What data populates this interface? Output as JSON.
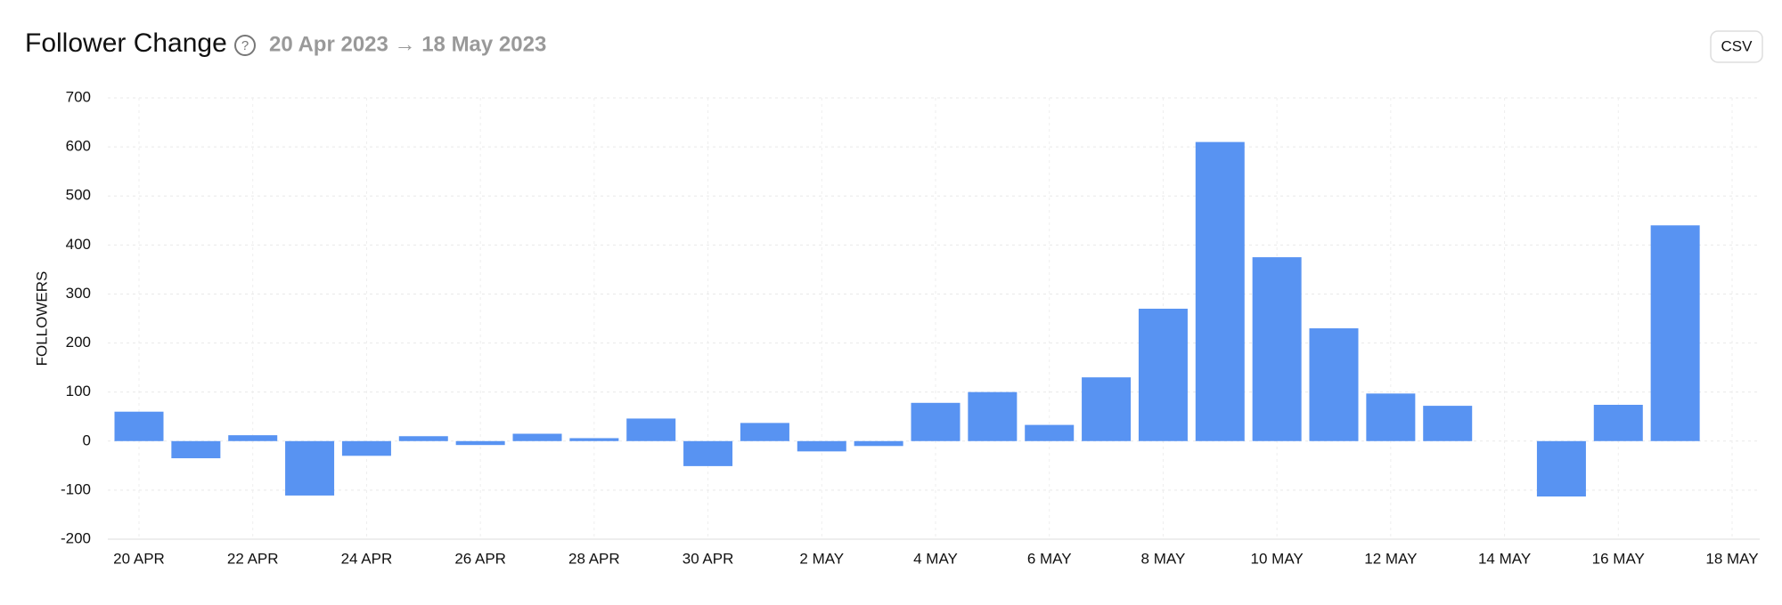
{
  "header": {
    "title": "Follower Change",
    "date_range": "20 Apr 2023 → 18 May 2023",
    "button": "CSV"
  },
  "chart_data": {
    "type": "bar",
    "y_label": "FOLLOWERS",
    "color": "#5893f2",
    "grid": true,
    "categories": [
      "20 APR",
      null,
      "22 APR",
      null,
      "24 APR",
      null,
      "26 APR",
      null,
      "28 APR",
      null,
      "30 APR",
      null,
      "2 MAY",
      null,
      "4 MAY",
      null,
      "6 MAY",
      null,
      "8 MAY",
      null,
      "10 MAY",
      null,
      "12 MAY",
      null,
      "14 MAY",
      null,
      "16 MAY",
      null,
      "18 MAY"
    ],
    "values": [
      60,
      -35,
      12,
      -111,
      -30,
      10,
      -8,
      15,
      6,
      46,
      -51,
      37,
      -21,
      -10,
      78,
      100,
      33,
      130,
      270,
      610,
      375,
      230,
      97,
      72,
      0,
      -113,
      74,
      440,
      null
    ],
    "ylim": [
      -200,
      700
    ],
    "yticks": [
      -200,
      -100,
      0,
      100,
      200,
      300,
      400,
      500,
      600,
      700
    ]
  }
}
